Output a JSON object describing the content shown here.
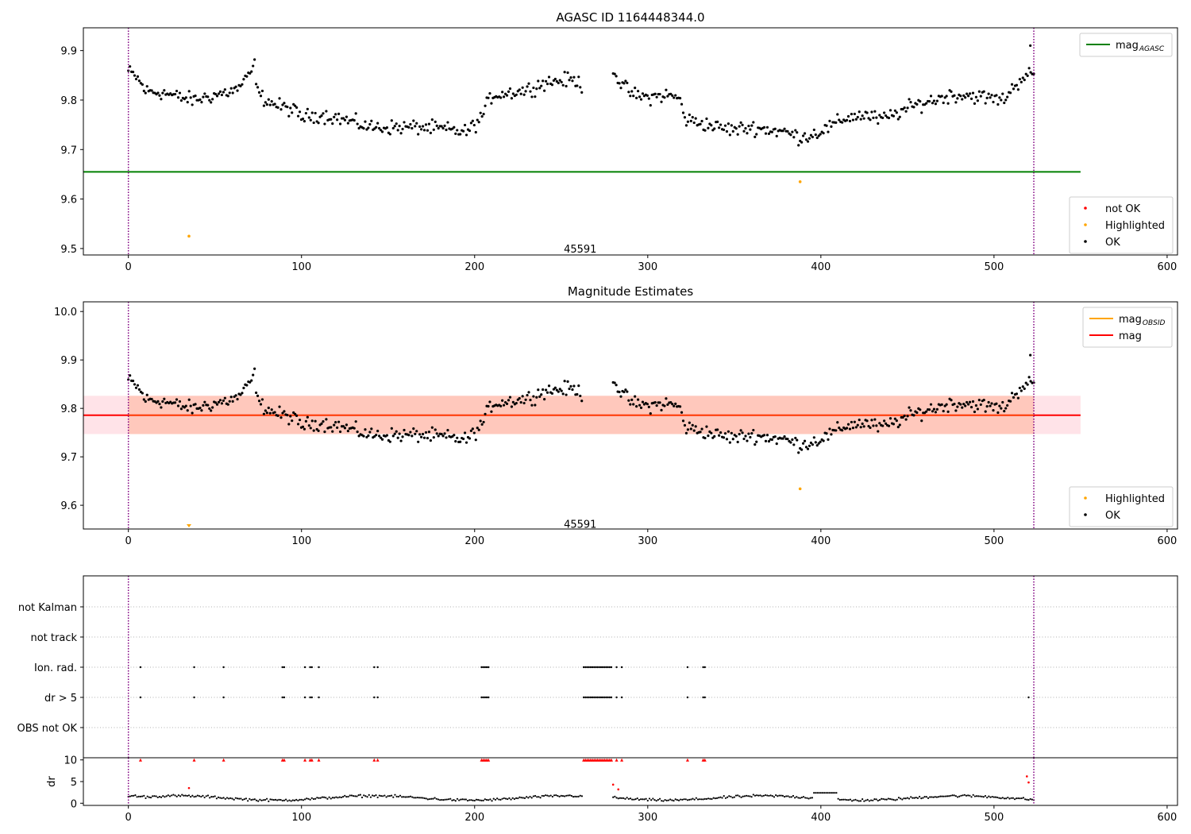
{
  "figure": {
    "colors": {
      "ok": "#000000",
      "highlighted": "#ffa500",
      "not_ok": "#ff0000",
      "agasc_line": "#008000",
      "obsid_line": "#ffa500",
      "mag_line": "#ff0000",
      "band_outer": "#ffc0cb",
      "band_inner": "#ffa07a",
      "obsid_marker": "#800080",
      "grid": "#b0b0b0"
    }
  },
  "chart_data": [
    {
      "id": "p1",
      "type": "scatter",
      "title": "AGASC ID 1164448344.0",
      "xlim": [
        -26,
        606
      ],
      "ylim": [
        9.487,
        9.946
      ],
      "xticks": [
        0,
        100,
        200,
        300,
        400,
        500,
        600
      ],
      "yticks": [
        9.5,
        9.6,
        9.7,
        9.8,
        9.9
      ],
      "ytick_labels": [
        "9.5",
        "9.6",
        "9.7",
        "9.8",
        "9.9"
      ],
      "obsid_lines": [
        0,
        523
      ],
      "obsid_label": {
        "text": "45591",
        "x": 261,
        "y": 9.5
      },
      "hlines": [
        {
          "name": "mag_AGASC",
          "y": 9.655,
          "x0": -26,
          "x1": 550
        }
      ],
      "highlighted": [
        [
          35,
          9.525
        ],
        [
          388,
          9.635
        ]
      ],
      "legend_top": [
        {
          "label": "mag",
          "sub": "AGASC",
          "kind": "line",
          "color": "agasc_line"
        }
      ],
      "legend_bottom": [
        {
          "label": "not OK",
          "kind": "dot",
          "color": "not_ok"
        },
        {
          "label": "Highlighted",
          "kind": "dot",
          "color": "highlighted"
        },
        {
          "label": "OK",
          "kind": "dot",
          "color": "ok"
        }
      ]
    },
    {
      "id": "p2",
      "type": "scatter",
      "title": "Magnitude Estimates",
      "xlim": [
        -26,
        606
      ],
      "ylim": [
        9.551,
        10.02
      ],
      "xticks": [
        0,
        100,
        200,
        300,
        400,
        500,
        600
      ],
      "yticks": [
        9.6,
        9.7,
        9.8,
        9.9,
        10.0
      ],
      "ytick_labels": [
        "9.6",
        "9.7",
        "9.8",
        "9.9",
        "10.0"
      ],
      "obsid_lines": [
        0,
        523
      ],
      "obsid_label": {
        "text": "45591",
        "x": 261,
        "y": 9.562
      },
      "mag": 9.786,
      "band_outer": [
        9.747,
        9.826
      ],
      "band_inner_x": [
        0,
        523
      ],
      "band_x": [
        -26,
        550
      ],
      "highlighted": [
        [
          388,
          9.634
        ]
      ],
      "highlighted_clipped": [
        [
          35,
          9.555
        ]
      ],
      "legend_top": [
        {
          "label": "mag",
          "sub": "OBSID",
          "kind": "line",
          "color": "obsid_line"
        },
        {
          "label": "mag",
          "kind": "line",
          "color": "mag_line"
        }
      ],
      "legend_bottom": [
        {
          "label": "Highlighted",
          "kind": "dot",
          "color": "highlighted"
        },
        {
          "label": "OK",
          "kind": "dot",
          "color": "ok"
        }
      ]
    },
    {
      "id": "p3",
      "type": "scatter",
      "title": "",
      "xlim": [
        -26,
        606
      ],
      "categories": [
        "not Kalman",
        "not track",
        "Ion. rad.",
        "dr > 5",
        "OBS not OK"
      ],
      "flag_x": [
        7,
        38,
        55,
        89,
        90,
        102,
        105,
        106,
        110,
        142,
        144,
        204,
        205,
        206,
        207,
        208,
        263,
        264,
        265,
        266,
        267,
        268,
        269,
        270,
        271,
        272,
        273,
        274,
        275,
        276,
        277,
        278,
        279,
        282,
        285,
        323,
        332,
        333
      ],
      "dr5_extra_x": [
        520
      ],
      "obsid_lines": [
        0,
        523
      ]
    },
    {
      "id": "p4",
      "type": "scatter",
      "ylabel": "dr",
      "xlim": [
        -26,
        606
      ],
      "ylim": [
        -0.5,
        10.5
      ],
      "xticks": [
        0,
        100,
        200,
        300,
        400,
        500,
        600
      ],
      "yticks": [
        0,
        5,
        10
      ],
      "ytick_labels": [
        "0",
        "5",
        "10"
      ],
      "capped_y": 10,
      "red_points": [
        [
          35,
          3.5
        ],
        [
          280,
          4.3
        ],
        [
          283,
          3.2
        ],
        [
          519,
          6.2
        ],
        [
          520,
          4.8
        ]
      ],
      "obsid_lines": [
        0,
        523
      ]
    }
  ]
}
